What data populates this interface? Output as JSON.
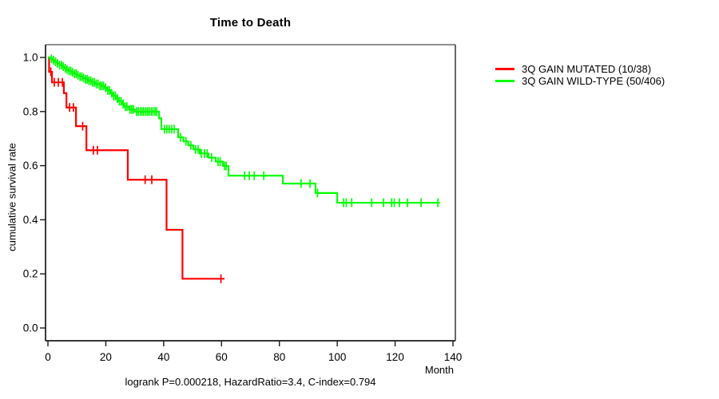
{
  "title": "Time to Death",
  "footer": "logrank P=0.000218, HazardRatio=3.4, C-index=0.794",
  "chart_data": {
    "type": "line",
    "subtype": "kaplan-meier-step",
    "title": "Time to Death",
    "xlabel": "Month",
    "ylabel": "cumulative survival rate",
    "xlim": [
      0,
      140
    ],
    "ylim": [
      0.0,
      1.0
    ],
    "xticks": [
      0,
      20,
      40,
      60,
      80,
      100,
      120,
      140
    ],
    "yticks": [
      "0.0",
      "0.2",
      "0.4",
      "0.6",
      "0.8",
      "1.0"
    ],
    "grid": false,
    "legend_position": "right-outside",
    "annotation": "logrank P=0.000218, HazardRatio=3.4, C-index=0.794",
    "series": [
      {
        "id": "mutated",
        "name": "3Q GAIN MUTATED (10/38)",
        "color": "#ff0000",
        "end_time": 61,
        "steps": [
          [
            0,
            1.0
          ],
          [
            0.4,
            0.947
          ],
          [
            1.4,
            0.908
          ],
          [
            5.5,
            0.868
          ],
          [
            6.4,
            0.815
          ],
          [
            9.7,
            0.746
          ],
          [
            13.3,
            0.657
          ],
          [
            27.6,
            0.548
          ],
          [
            41,
            0.363
          ],
          [
            46.5,
            0.182
          ]
        ],
        "censor_times": [
          1.0,
          2.2,
          3.6,
          5.0,
          7.5,
          8.8,
          12.0,
          15.7,
          17.1,
          33.6,
          35.9,
          59.8
        ]
      },
      {
        "id": "wild-type",
        "name": "3Q GAIN WILD-TYPE (50/406)",
        "color": "#00ff00",
        "end_time": 135.5,
        "steps": [
          [
            0,
            1.0
          ],
          [
            0.8,
            0.995
          ],
          [
            1.6,
            0.99
          ],
          [
            2.4,
            0.984
          ],
          [
            3.2,
            0.978
          ],
          [
            4,
            0.972
          ],
          [
            4.8,
            0.966
          ],
          [
            5.6,
            0.96
          ],
          [
            6.4,
            0.955
          ],
          [
            7.2,
            0.95
          ],
          [
            8,
            0.945
          ],
          [
            9,
            0.94
          ],
          [
            10,
            0.934
          ],
          [
            11,
            0.929
          ],
          [
            12,
            0.924
          ],
          [
            13,
            0.919
          ],
          [
            14,
            0.914
          ],
          [
            15,
            0.908
          ],
          [
            16.5,
            0.902
          ],
          [
            18,
            0.895
          ],
          [
            19.5,
            0.888
          ],
          [
            20.5,
            0.878
          ],
          [
            21.5,
            0.868
          ],
          [
            22.5,
            0.858
          ],
          [
            23.5,
            0.848
          ],
          [
            24.5,
            0.838
          ],
          [
            25.5,
            0.828
          ],
          [
            26.5,
            0.818
          ],
          [
            28,
            0.808
          ],
          [
            30,
            0.8
          ],
          [
            38.4,
            0.775
          ],
          [
            39.2,
            0.735
          ],
          [
            45,
            0.705
          ],
          [
            46.8,
            0.69
          ],
          [
            48.5,
            0.675
          ],
          [
            50.3,
            0.66
          ],
          [
            52.5,
            0.645
          ],
          [
            55.5,
            0.63
          ],
          [
            58,
            0.615
          ],
          [
            60.5,
            0.599
          ],
          [
            62.4,
            0.563
          ],
          [
            81.2,
            0.534
          ],
          [
            92.5,
            0.499
          ],
          [
            100,
            0.463
          ]
        ],
        "censor_times": [
          1.2,
          1.9,
          2.6,
          3.3,
          4.0,
          4.7,
          5.3,
          6.0,
          6.6,
          7.3,
          7.9,
          8.5,
          9.2,
          9.8,
          10.4,
          11.1,
          11.7,
          12.3,
          13.0,
          13.6,
          14.2,
          14.8,
          15.4,
          16.0,
          16.7,
          17.3,
          18.0,
          18.6,
          19.2,
          19.9,
          20.7,
          21.3,
          22.0,
          22.7,
          23.3,
          24.0,
          24.7,
          25.3,
          26.0,
          26.7,
          27.3,
          28.4,
          29.0,
          29.6,
          30.6,
          31.2,
          31.9,
          32.5,
          33.1,
          33.8,
          34.4,
          35.0,
          35.7,
          36.3,
          37.0,
          37.6,
          40.3,
          41.1,
          41.9,
          42.8,
          43.6,
          45.8,
          47.7,
          49.4,
          51.0,
          51.9,
          53.0,
          54.1,
          55.0,
          56.6,
          58.8,
          59.5,
          61.0,
          61.6,
          68.0,
          69.6,
          71.3,
          74.6,
          87.5,
          90.6,
          93.2,
          102.2,
          103.1,
          105.0,
          111.9,
          116.0,
          118.8,
          119.7,
          121.5,
          124.3,
          129.0,
          134.8
        ]
      }
    ]
  }
}
